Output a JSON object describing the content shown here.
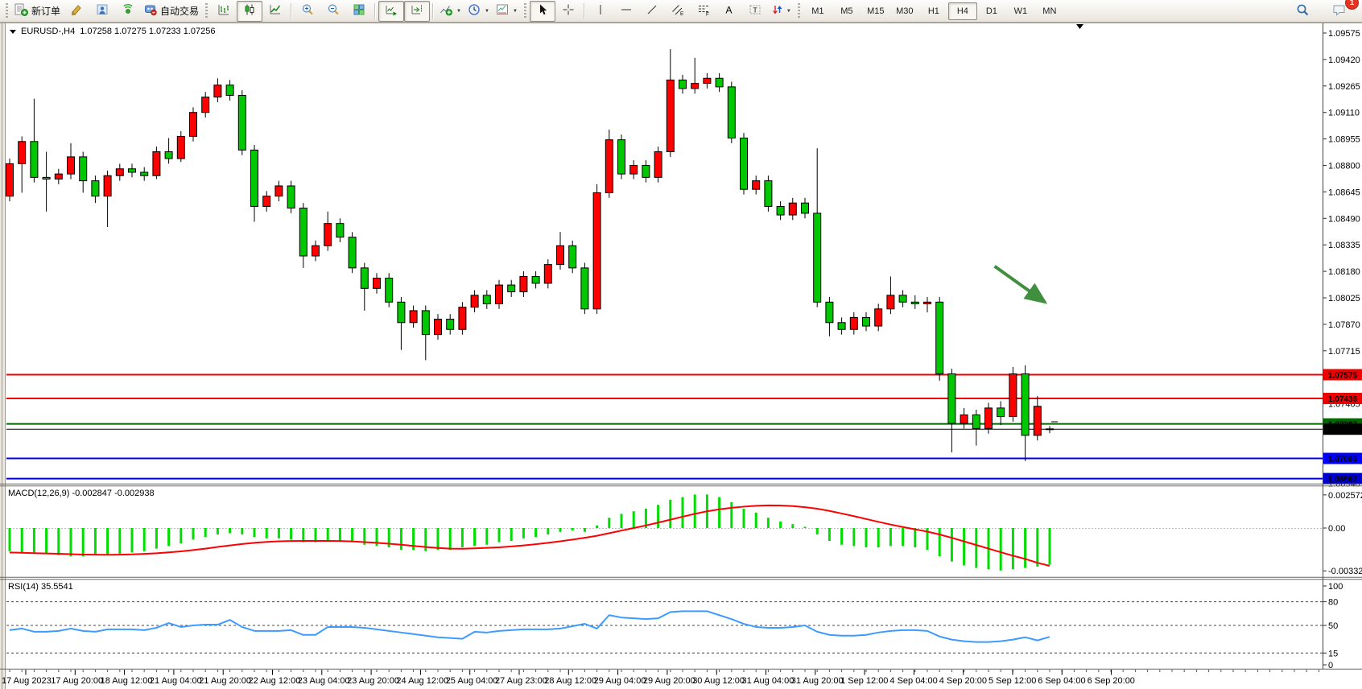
{
  "toolbar": {
    "new_order_label": "新订单",
    "autotrading_label": "自动交易",
    "timeframes": [
      "M1",
      "M5",
      "M15",
      "M30",
      "H1",
      "H4",
      "D1",
      "W1",
      "MN"
    ],
    "selected_timeframe": "H4",
    "notification_count": "1"
  },
  "chart": {
    "symbol_title": "EURUSD-,H4",
    "quote_line": "1.07258 1.07275 1.07233 1.07256"
  },
  "macd": {
    "label": "MACD(12,26,9) -0.002847 -0.002938",
    "scale": [
      {
        "label": "0.002572",
        "value": 0.002572
      },
      {
        "label": "0.00",
        "value": 0
      },
      {
        "label": "-0.003326",
        "value": -0.003326
      }
    ]
  },
  "rsi": {
    "label": "RSI(14) 35.5541",
    "scale": [
      {
        "label": "100",
        "value": 100
      },
      {
        "label": "80",
        "value": 80,
        "dashed": true
      },
      {
        "label": "50",
        "value": 50,
        "dashed": true
      },
      {
        "label": "15",
        "value": 15,
        "dashed": true
      },
      {
        "label": "0",
        "value": 0
      }
    ]
  },
  "time_axis": {
    "labels": [
      "17 Aug 2023",
      "17 Aug 20:00",
      "18 Aug 12:00",
      "21 Aug 04:00",
      "21 Aug 20:00",
      "22 Aug 12:00",
      "23 Aug 04:00",
      "23 Aug 20:00",
      "24 Aug 12:00",
      "25 Aug 04:00",
      "27 Aug 23:00",
      "28 Aug 12:00",
      "29 Aug 04:00",
      "29 Aug 20:00",
      "30 Aug 12:00",
      "31 Aug 04:00",
      "31 Aug 20:00",
      "1 Sep 12:00",
      "4 Sep 04:00",
      "4 Sep 20:00",
      "5 Sep 12:00",
      "6 Sep 04:00",
      "6 Sep 20:00"
    ]
  },
  "chart_data": {
    "type": "candlestick",
    "symbol": "EURUSD-",
    "timeframe": "H4",
    "price_axis_ticks": [
      "1.09575",
      "1.09420",
      "1.09265",
      "1.09110",
      "1.08955",
      "1.08800",
      "1.08645",
      "1.08490",
      "1.08335",
      "1.08180",
      "1.08025",
      "1.07870",
      "1.07715",
      "1.07560",
      "1.07405",
      "1.07250",
      "1.07095",
      "1.06940"
    ],
    "levels": [
      {
        "label": "1.07575",
        "price": 1.07575,
        "color": "#ee0000",
        "width": 2
      },
      {
        "label": "1.07436",
        "price": 1.07436,
        "color": "#ee0000",
        "width": 2
      },
      {
        "label": "1.07287",
        "price": 1.07287,
        "color": "#006600",
        "width": 2
      },
      {
        "label": "1.07256",
        "price": 1.07256,
        "color": "#000000",
        "width": 1
      },
      {
        "label": "1.07085",
        "price": 1.07085,
        "color": "#0000ff",
        "width": 2
      },
      {
        "label": "1.06967",
        "price": 1.06967,
        "color": "#0000cc",
        "width": 2
      }
    ],
    "colors": {
      "up": "#ff0000",
      "down": "#00c800",
      "macd_histogram": "#00dd00",
      "macd_signal": "#ff0000",
      "rsi_line": "#3d9bff"
    },
    "candles": [
      [
        1.0862,
        1.0884,
        1.0859,
        1.0881
      ],
      [
        1.0881,
        1.0897,
        1.0864,
        1.0894
      ],
      [
        1.0894,
        1.0919,
        1.087,
        1.0873
      ],
      [
        1.0873,
        1.0888,
        1.0853,
        1.0872
      ],
      [
        1.0872,
        1.0878,
        1.0869,
        1.0875
      ],
      [
        1.0875,
        1.0893,
        1.0872,
        1.0885
      ],
      [
        1.0885,
        1.0888,
        1.0864,
        1.0871
      ],
      [
        1.0871,
        1.0874,
        1.0858,
        1.0862
      ],
      [
        1.0862,
        1.0877,
        1.0844,
        1.0874
      ],
      [
        1.0874,
        1.0881,
        1.0871,
        1.0878
      ],
      [
        1.0878,
        1.0881,
        1.0873,
        1.0876
      ],
      [
        1.0876,
        1.0879,
        1.0871,
        1.0874
      ],
      [
        1.0874,
        1.0891,
        1.0872,
        1.0888
      ],
      [
        1.0888,
        1.0896,
        1.0881,
        1.0884
      ],
      [
        1.0884,
        1.09,
        1.0882,
        1.0897
      ],
      [
        1.0897,
        1.0914,
        1.0894,
        1.0911
      ],
      [
        1.0911,
        1.0923,
        1.0908,
        1.092
      ],
      [
        1.092,
        1.0931,
        1.0917,
        1.0927
      ],
      [
        1.0927,
        1.093,
        1.0918,
        1.0921
      ],
      [
        1.0921,
        1.0924,
        1.0886,
        1.0889
      ],
      [
        1.0889,
        1.0892,
        1.0847,
        1.0856
      ],
      [
        1.0856,
        1.0865,
        1.0853,
        1.0862
      ],
      [
        1.0862,
        1.0871,
        1.0859,
        1.0868
      ],
      [
        1.0868,
        1.0871,
        1.0852,
        1.0855
      ],
      [
        1.0855,
        1.0858,
        1.082,
        1.0827
      ],
      [
        1.0827,
        1.0836,
        1.0824,
        1.0833
      ],
      [
        1.0833,
        1.0853,
        1.083,
        1.0846
      ],
      [
        1.0846,
        1.0849,
        1.0835,
        1.0838
      ],
      [
        1.0838,
        1.0841,
        1.0817,
        1.082
      ],
      [
        1.082,
        1.0823,
        1.0795,
        1.0808
      ],
      [
        1.0808,
        1.0817,
        1.0805,
        1.0814
      ],
      [
        1.0814,
        1.0817,
        1.0797,
        1.08
      ],
      [
        1.08,
        1.0803,
        1.0772,
        1.0788
      ],
      [
        1.0788,
        1.0798,
        1.0785,
        1.0795
      ],
      [
        1.0795,
        1.0798,
        1.0766,
        1.0781
      ],
      [
        1.0781,
        1.0793,
        1.0778,
        1.079
      ],
      [
        1.079,
        1.0793,
        1.0781,
        1.0784
      ],
      [
        1.0784,
        1.08,
        1.0781,
        1.0797
      ],
      [
        1.0797,
        1.0807,
        1.0794,
        1.0804
      ],
      [
        1.0804,
        1.0807,
        1.0796,
        1.0799
      ],
      [
        1.0799,
        1.0813,
        1.0796,
        1.081
      ],
      [
        1.081,
        1.0813,
        1.0803,
        1.0806
      ],
      [
        1.0806,
        1.0818,
        1.0803,
        1.0815
      ],
      [
        1.0815,
        1.0818,
        1.0808,
        1.0811
      ],
      [
        1.0811,
        1.0825,
        1.0808,
        1.0822
      ],
      [
        1.0822,
        1.0841,
        1.0819,
        1.0833
      ],
      [
        1.0833,
        1.0836,
        1.0817,
        1.082
      ],
      [
        1.082,
        1.0823,
        1.0793,
        1.0796
      ],
      [
        1.0796,
        1.0869,
        1.0793,
        1.0864
      ],
      [
        1.0864,
        1.0901,
        1.0861,
        1.0895
      ],
      [
        1.0895,
        1.0898,
        1.0872,
        1.0875
      ],
      [
        1.0875,
        1.0883,
        1.0872,
        1.088
      ],
      [
        1.088,
        1.0883,
        1.087,
        1.0873
      ],
      [
        1.0873,
        1.0891,
        1.087,
        1.0888
      ],
      [
        1.0888,
        1.0948,
        1.0885,
        1.093
      ],
      [
        1.093,
        1.0933,
        1.0922,
        1.0925
      ],
      [
        1.0925,
        1.0943,
        1.0922,
        1.0928
      ],
      [
        1.0928,
        1.0934,
        1.0925,
        1.0931
      ],
      [
        1.0931,
        1.0934,
        1.0923,
        1.0926
      ],
      [
        1.0926,
        1.0929,
        1.0893,
        1.0896
      ],
      [
        1.0896,
        1.0899,
        1.0863,
        1.0866
      ],
      [
        1.0866,
        1.0874,
        1.0863,
        1.0871
      ],
      [
        1.0871,
        1.0874,
        1.0853,
        1.0856
      ],
      [
        1.0856,
        1.0859,
        1.0848,
        1.0851
      ],
      [
        1.0851,
        1.0861,
        1.0848,
        1.0858
      ],
      [
        1.0858,
        1.0861,
        1.0849,
        1.0852
      ],
      [
        1.0852,
        1.089,
        1.0797,
        1.08
      ],
      [
        1.08,
        1.0803,
        1.078,
        1.0788
      ],
      [
        1.0788,
        1.0791,
        1.0781,
        1.0784
      ],
      [
        1.0784,
        1.0794,
        1.0781,
        1.0791
      ],
      [
        1.0791,
        1.0794,
        1.0783,
        1.0786
      ],
      [
        1.0786,
        1.0799,
        1.0783,
        1.0796
      ],
      [
        1.0796,
        1.0815,
        1.0793,
        1.0804
      ],
      [
        1.0804,
        1.0807,
        1.0797,
        1.08
      ],
      [
        1.08,
        1.0804,
        1.0796,
        1.0799
      ],
      [
        1.0799,
        1.0803,
        1.0794,
        1.08
      ],
      [
        1.08,
        1.0803,
        1.0754,
        1.0758
      ],
      [
        1.0758,
        1.0761,
        1.0712,
        1.0729
      ],
      [
        1.0729,
        1.0738,
        1.0726,
        1.0734
      ],
      [
        1.0734,
        1.0737,
        1.0716,
        1.0726
      ],
      [
        1.0726,
        1.0741,
        1.0723,
        1.0738
      ],
      [
        1.0738,
        1.0742,
        1.0728,
        1.0733
      ],
      [
        1.0733,
        1.0762,
        1.073,
        1.0758
      ],
      [
        1.0758,
        1.0763,
        1.0707,
        1.0722
      ],
      [
        1.0722,
        1.0745,
        1.0719,
        1.0739
      ],
      [
        1.07258,
        1.07275,
        1.07233,
        1.07256
      ]
    ],
    "macd_histogram": [
      -0.0018,
      -0.0019,
      -0.002,
      -0.002,
      -0.0021,
      -0.0022,
      -0.0022,
      -0.0021,
      -0.0021,
      -0.002,
      -0.0019,
      -0.0018,
      -0.0016,
      -0.0014,
      -0.0012,
      -0.0009,
      -0.0007,
      -0.0005,
      -0.0004,
      -0.0005,
      -0.0007,
      -0.0008,
      -0.0008,
      -0.0009,
      -0.0011,
      -0.0011,
      -0.001,
      -0.001,
      -0.0011,
      -0.0013,
      -0.0014,
      -0.0015,
      -0.0017,
      -0.0017,
      -0.0018,
      -0.0017,
      -0.0017,
      -0.0015,
      -0.0014,
      -0.0013,
      -0.0011,
      -0.001,
      -0.0008,
      -0.0007,
      -0.0005,
      -0.0003,
      -0.0002,
      -0.0003,
      0.0002,
      0.0008,
      0.0011,
      0.0013,
      0.0015,
      0.0018,
      0.0022,
      0.0024,
      0.0026,
      0.0026,
      0.0024,
      0.002,
      0.0015,
      0.0012,
      0.0008,
      0.0005,
      0.0003,
      0.0001,
      -0.0005,
      -0.001,
      -0.0013,
      -0.0014,
      -0.0015,
      -0.0015,
      -0.0014,
      -0.0014,
      -0.0015,
      -0.0017,
      -0.0022,
      -0.0026,
      -0.0029,
      -0.0031,
      -0.0032,
      -0.0033,
      -0.0032,
      -0.0031,
      -0.003,
      -0.002847
    ],
    "macd_signal": [
      -0.0019,
      -0.00192,
      -0.00195,
      -0.00198,
      -0.002,
      -0.00203,
      -0.00206,
      -0.00207,
      -0.00208,
      -0.00207,
      -0.00205,
      -0.00201,
      -0.00196,
      -0.00189,
      -0.00181,
      -0.00171,
      -0.0016,
      -0.00147,
      -0.00135,
      -0.00124,
      -0.00115,
      -0.00108,
      -0.00103,
      -0.00101,
      -0.001,
      -0.001,
      -0.001,
      -0.00101,
      -0.00104,
      -0.00109,
      -0.00115,
      -0.00122,
      -0.0013,
      -0.00139,
      -0.00148,
      -0.00155,
      -0.0016,
      -0.00161,
      -0.00158,
      -0.00154,
      -0.0015,
      -0.00143,
      -0.00135,
      -0.00126,
      -0.00115,
      -0.00103,
      -0.0009,
      -0.00076,
      -0.0006,
      -0.0004,
      -0.0002,
      0.0,
      0.0002,
      0.00042,
      0.00065,
      0.00088,
      0.0011,
      0.0013,
      0.00145,
      0.00157,
      0.00166,
      0.00173,
      0.00176,
      0.00175,
      0.0017,
      0.00162,
      0.0015,
      0.00133,
      0.00113,
      0.00092,
      0.0007,
      0.00048,
      0.00027,
      8e-05,
      -0.0001,
      -0.00028,
      -0.0005,
      -0.00076,
      -0.00104,
      -0.00132,
      -0.0016,
      -0.00188,
      -0.00215,
      -0.0024,
      -0.0027,
      -0.002938
    ],
    "rsi_values": [
      44,
      46,
      42,
      42,
      43,
      46,
      43,
      42,
      45,
      45,
      45,
      44,
      47,
      53,
      48,
      50,
      51,
      51,
      57,
      48,
      43,
      43,
      43,
      44,
      38,
      38,
      48,
      48,
      48,
      47,
      45,
      43,
      41,
      39,
      37,
      35,
      34,
      33,
      42,
      41,
      43,
      44,
      45,
      45,
      45,
      46,
      49,
      52,
      46,
      63,
      60,
      59,
      58,
      59,
      67,
      68,
      68,
      68,
      63,
      58,
      52,
      48,
      47,
      47,
      48,
      50,
      42,
      38,
      37,
      37,
      38,
      41,
      43,
      44,
      44,
      43,
      36,
      32,
      30,
      29,
      29,
      30,
      32,
      35,
      31,
      35.5541
    ],
    "arrow_annotation": {
      "from_bar": 80.5,
      "from_price": 1.0821,
      "to_bar": 84.6,
      "to_price": 1.08,
      "color": "#3f8f3f"
    }
  }
}
